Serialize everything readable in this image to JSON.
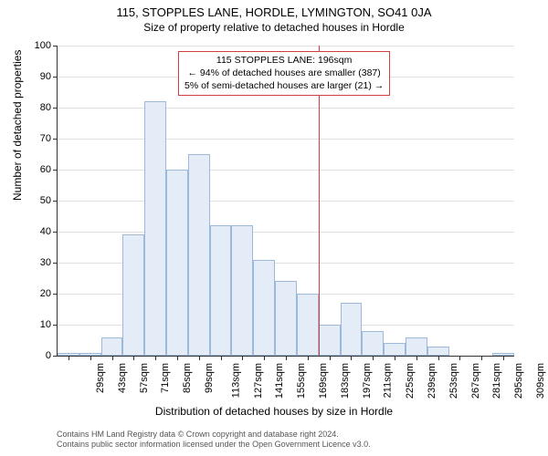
{
  "title": "115, STOPPLES LANE, HORDLE, LYMINGTON, SO41 0JA",
  "subtitle": "Size of property relative to detached houses in Hordle",
  "chart": {
    "type": "histogram",
    "ylabel": "Number of detached properties",
    "xlabel": "Distribution of detached houses by size in Hordle",
    "ylim": [
      0,
      100
    ],
    "ytick_step": 10,
    "x_categories": [
      "29sqm",
      "43sqm",
      "57sqm",
      "71sqm",
      "85sqm",
      "99sqm",
      "113sqm",
      "127sqm",
      "141sqm",
      "155sqm",
      "169sqm",
      "183sqm",
      "197sqm",
      "211sqm",
      "225sqm",
      "239sqm",
      "253sqm",
      "267sqm",
      "281sqm",
      "295sqm",
      "309sqm"
    ],
    "values": [
      1,
      1,
      6,
      39,
      82,
      60,
      65,
      42,
      42,
      31,
      24,
      20,
      10,
      17,
      8,
      4,
      6,
      3,
      0,
      0,
      1
    ],
    "bar_fill": "#e3ecf7",
    "bar_border": "#9db8d8",
    "grid_color": "#e0e0e0",
    "background_color": "#ffffff",
    "reference_x_index": 12,
    "reference_line_color": "#d04040",
    "annotation": {
      "line1": "115 STOPPLES LANE: 196sqm",
      "line2": "← 94% of detached houses are smaller (387)",
      "line3": "5% of semi-detached houses are larger (21) →",
      "border_color": "#d04040"
    }
  },
  "footnote": {
    "line1": "Contains HM Land Registry data © Crown copyright and database right 2024.",
    "line2": "Contains public sector information licensed under the Open Government Licence v3.0."
  },
  "fonts": {
    "title_size": 13,
    "subtitle_size": 12,
    "axis_label_size": 12,
    "tick_size": 11,
    "annotation_size": 10.5,
    "footnote_size": 9
  }
}
